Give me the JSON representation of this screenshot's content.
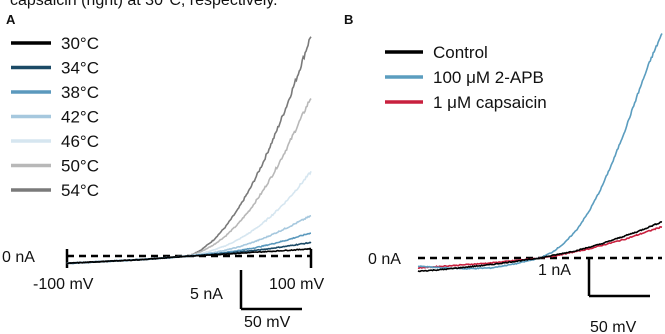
{
  "caption_fragment": "capsaicin (right) at 30°C, respectively.",
  "chart_data": [
    {
      "type": "line",
      "panel_label": "A",
      "xlabel": "",
      "ylabel": "",
      "x_unit": "mV",
      "xlim": [
        -100,
        100
      ],
      "y_unit": "nA",
      "ylim": [
        -0.5,
        9.5
      ],
      "zero_label": "0 nA",
      "x_min_label": "-100 mV",
      "x_max_label": "100 mV",
      "scalebar": {
        "x_value": 50,
        "x_label": "50 mV",
        "y_value": 5,
        "y_label": "5 nA"
      },
      "legend_position": "top-left",
      "x": [
        -100,
        -80,
        -60,
        -40,
        -20,
        0,
        10,
        20,
        30,
        40,
        50,
        60,
        70,
        80,
        90,
        100
      ],
      "series": [
        {
          "name": "30°C",
          "color": "#000000",
          "values": [
            -0.3,
            -0.25,
            -0.2,
            -0.15,
            -0.08,
            0.0,
            0.02,
            0.05,
            0.08,
            0.11,
            0.14,
            0.17,
            0.2,
            0.23,
            0.26,
            0.3
          ]
        },
        {
          "name": "34°C",
          "color": "#1b4a66",
          "values": [
            -0.3,
            -0.25,
            -0.2,
            -0.15,
            -0.08,
            0.0,
            0.03,
            0.07,
            0.11,
            0.16,
            0.21,
            0.26,
            0.33,
            0.4,
            0.48,
            0.55
          ]
        },
        {
          "name": "38°C",
          "color": "#5b99bd",
          "values": [
            -0.3,
            -0.25,
            -0.2,
            -0.15,
            -0.08,
            0.0,
            0.04,
            0.09,
            0.15,
            0.22,
            0.3,
            0.4,
            0.52,
            0.65,
            0.8,
            0.95
          ]
        },
        {
          "name": "42°C",
          "color": "#a6c8de",
          "values": [
            -0.3,
            -0.25,
            -0.2,
            -0.15,
            -0.08,
            0.0,
            0.06,
            0.14,
            0.24,
            0.36,
            0.52,
            0.7,
            0.92,
            1.15,
            1.4,
            1.65
          ]
        },
        {
          "name": "46°C",
          "color": "#d6e6f0",
          "values": [
            -0.3,
            -0.25,
            -0.2,
            -0.15,
            -0.08,
            0.0,
            0.1,
            0.24,
            0.42,
            0.66,
            0.96,
            1.32,
            1.76,
            2.26,
            2.84,
            3.45
          ]
        },
        {
          "name": "50°C",
          "color": "#b8b8b8",
          "values": [
            -0.3,
            -0.25,
            -0.2,
            -0.15,
            -0.08,
            0.0,
            0.18,
            0.45,
            0.82,
            1.3,
            1.9,
            2.62,
            3.45,
            4.4,
            5.45,
            6.5
          ]
        },
        {
          "name": "54°C",
          "color": "#7a7a7a",
          "values": [
            -0.3,
            -0.25,
            -0.2,
            -0.15,
            -0.08,
            0.0,
            0.25,
            0.65,
            1.2,
            1.9,
            2.75,
            3.75,
            4.9,
            6.15,
            7.55,
            9.05
          ]
        }
      ]
    },
    {
      "type": "line",
      "panel_label": "B",
      "xlabel": "",
      "ylabel": "",
      "x_unit": "mV",
      "xlim": [
        -100,
        100
      ],
      "y_unit": "nA",
      "ylim": [
        -0.3,
        2.8
      ],
      "zero_label": "0 nA",
      "scalebar": {
        "x_value": 50,
        "x_label": "50 mV",
        "y_value": 1,
        "y_label": "1 nA"
      },
      "legend_position": "top-left",
      "x": [
        -100,
        -80,
        -60,
        -40,
        -20,
        0,
        10,
        20,
        30,
        40,
        50,
        60,
        70,
        80,
        90,
        100
      ],
      "series": [
        {
          "name": "Control",
          "color": "#000000",
          "values": [
            -0.16,
            -0.14,
            -0.11,
            -0.08,
            -0.04,
            0.0,
            0.03,
            0.06,
            0.09,
            0.13,
            0.17,
            0.22,
            0.27,
            0.32,
            0.38,
            0.44
          ]
        },
        {
          "name": "100 μM 2-APB",
          "color": "#5b9dbf",
          "values": [
            -0.1,
            -0.12,
            -0.13,
            -0.12,
            -0.07,
            0.0,
            0.07,
            0.18,
            0.34,
            0.56,
            0.84,
            1.18,
            1.56,
            1.98,
            2.38,
            2.72
          ]
        },
        {
          "name": "1 μM capsaicin",
          "color": "#c8203e",
          "values": [
            -0.12,
            -0.1,
            -0.08,
            -0.06,
            -0.03,
            0.0,
            0.02,
            0.05,
            0.08,
            0.11,
            0.15,
            0.19,
            0.23,
            0.28,
            0.33,
            0.38
          ]
        }
      ]
    }
  ]
}
